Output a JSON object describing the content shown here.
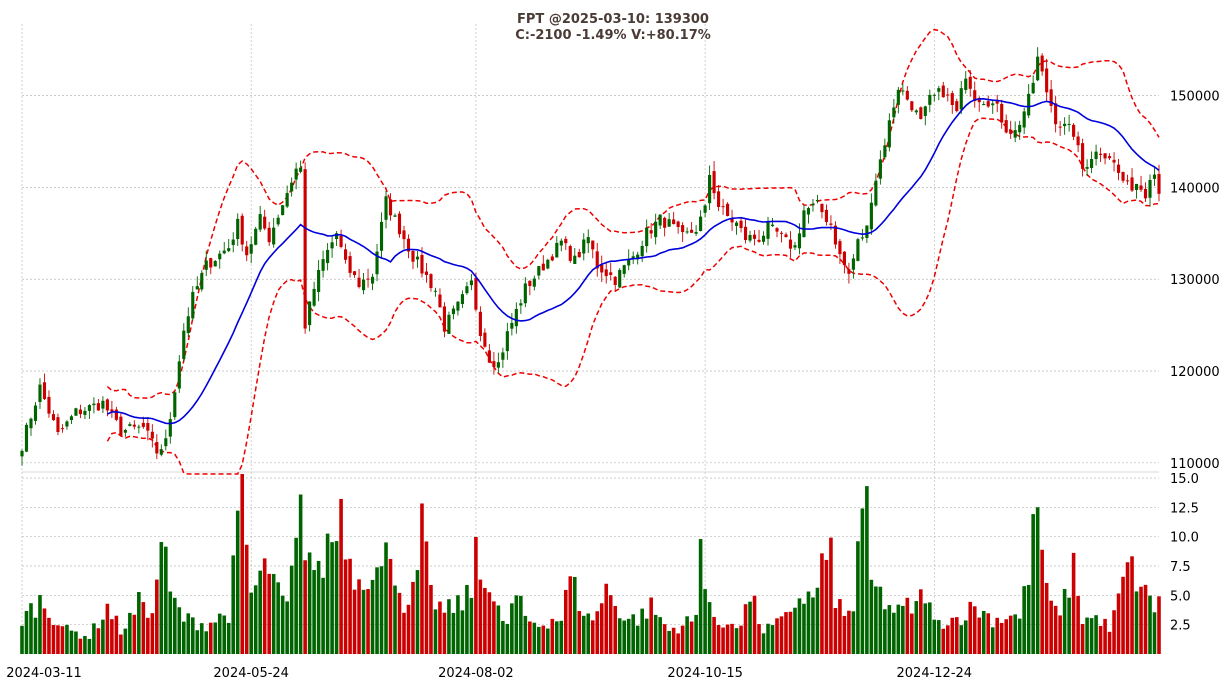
{
  "title_line1": "FPT @2025-03-10: 139300",
  "title_line2": "C:-2100 -1.49% V:+80.17%",
  "colors": {
    "up": "#006400",
    "down": "#cc0000",
    "ma": "#0000dd",
    "band": "#ee0000",
    "grid": "#bbbbbb"
  },
  "chart_data": [
    {
      "type": "candlestick",
      "title": "FPT @2025-03-10: 139300",
      "subtitle": "C:-2100 -1.49% V:+80.17%",
      "x_tick_labels": [
        "2024-03-11",
        "2024-05-24",
        "2024-08-02",
        "2024-10-15",
        "2024-12-24"
      ],
      "x_tick_positions": [
        0,
        51,
        101,
        152,
        203
      ],
      "y_tick_labels": [
        "110000",
        "120000",
        "130000",
        "140000",
        "150000"
      ],
      "ylim": [
        109000,
        157800
      ],
      "grid": true,
      "overlays": [
        "20-period moving average (blue)",
        "Bollinger bands (red dashed)"
      ],
      "anchor_closes": [
        [
          0,
          112000
        ],
        [
          4,
          118200
        ],
        [
          8,
          113000
        ],
        [
          12,
          115500
        ],
        [
          18,
          116500
        ],
        [
          22,
          113500
        ],
        [
          27,
          113800
        ],
        [
          30,
          111200
        ],
        [
          32,
          112200
        ],
        [
          33,
          115000
        ],
        [
          36,
          124500
        ],
        [
          38,
          128000
        ],
        [
          41,
          131500
        ],
        [
          46,
          133500
        ],
        [
          48,
          136000
        ],
        [
          50,
          132800
        ],
        [
          53,
          136500
        ],
        [
          55,
          134500
        ],
        [
          59,
          139500
        ],
        [
          61,
          142000
        ],
        [
          62,
          142000
        ],
        [
          63,
          125000
        ],
        [
          65,
          129000
        ],
        [
          67,
          132000
        ],
        [
          70,
          135000
        ],
        [
          72,
          131500
        ],
        [
          75,
          129500
        ],
        [
          78,
          130500
        ],
        [
          81,
          138500
        ],
        [
          84,
          135500
        ],
        [
          87,
          132500
        ],
        [
          92,
          128800
        ],
        [
          94,
          124800
        ],
        [
          97,
          127000
        ],
        [
          100,
          129500
        ],
        [
          102,
          124500
        ],
        [
          104,
          121500
        ],
        [
          106,
          120800
        ],
        [
          108,
          124000
        ],
        [
          112,
          129000
        ],
        [
          116,
          131500
        ],
        [
          120,
          134000
        ],
        [
          123,
          132000
        ],
        [
          126,
          134500
        ],
        [
          128,
          131500
        ],
        [
          132,
          130000
        ],
        [
          136,
          132500
        ],
        [
          139,
          135000
        ],
        [
          142,
          136500
        ],
        [
          144,
          136000
        ],
        [
          147,
          134500
        ],
        [
          150,
          135500
        ],
        [
          152,
          137500
        ],
        [
          153,
          141500
        ],
        [
          155,
          138000
        ],
        [
          157,
          136800
        ],
        [
          159,
          136000
        ],
        [
          161,
          134500
        ],
        [
          164,
          134500
        ],
        [
          166,
          135500
        ],
        [
          168,
          135000
        ],
        [
          170,
          134000
        ],
        [
          172,
          133500
        ],
        [
          174,
          137500
        ],
        [
          177,
          138000
        ],
        [
          180,
          136000
        ],
        [
          182,
          132500
        ],
        [
          184,
          130500
        ],
        [
          186,
          134000
        ],
        [
          188,
          135500
        ],
        [
          189,
          139000
        ],
        [
          191,
          143000
        ],
        [
          193,
          147000
        ],
        [
          195,
          151000
        ],
        [
          198,
          149000
        ],
        [
          200,
          147000
        ],
        [
          202,
          149500
        ],
        [
          205,
          150500
        ],
        [
          208,
          148000
        ],
        [
          210,
          152500
        ],
        [
          212,
          150000
        ],
        [
          215,
          149500
        ],
        [
          217,
          148500
        ],
        [
          219,
          146500
        ],
        [
          221,
          146000
        ],
        [
          224,
          149500
        ],
        [
          225,
          151500
        ],
        [
          226,
          154000
        ],
        [
          228,
          150500
        ],
        [
          230,
          147500
        ],
        [
          232,
          146500
        ],
        [
          234,
          146000
        ],
        [
          236,
          142000
        ],
        [
          238,
          143500
        ],
        [
          240,
          144000
        ],
        [
          242,
          143500
        ],
        [
          244,
          141500
        ],
        [
          246,
          140000
        ],
        [
          248,
          140500
        ],
        [
          250,
          139500
        ],
        [
          251,
          141500
        ],
        [
          252,
          141400
        ],
        [
          253,
          139300
        ]
      ],
      "volume": {
        "y_tick_labels": [
          "2.5",
          "5.0",
          "7.5",
          "10.0",
          "12.5",
          "15.0"
        ],
        "ylim": [
          0,
          15
        ],
        "anchor_values": [
          [
            0,
            3
          ],
          [
            4,
            4.5
          ],
          [
            10,
            2
          ],
          [
            15,
            1.5
          ],
          [
            19,
            4
          ],
          [
            22,
            2
          ],
          [
            25,
            3.5
          ],
          [
            27,
            5
          ],
          [
            29,
            3
          ],
          [
            31,
            10.2
          ],
          [
            33,
            5
          ],
          [
            36,
            3
          ],
          [
            41,
            2.5
          ],
          [
            46,
            3.5
          ],
          [
            49,
            13.5
          ],
          [
            51,
            5
          ],
          [
            53,
            6.5
          ],
          [
            55,
            7.5
          ],
          [
            57,
            5
          ],
          [
            59,
            4
          ],
          [
            62,
            11.5
          ],
          [
            64,
            8.5
          ],
          [
            66,
            6.5
          ],
          [
            69,
            10.5
          ],
          [
            70,
            9.5
          ],
          [
            71,
            13.5
          ],
          [
            73,
            7.5
          ],
          [
            75,
            6.5
          ],
          [
            78,
            7.5
          ],
          [
            80,
            6.8
          ],
          [
            82,
            9.5
          ],
          [
            84,
            5.5
          ],
          [
            86,
            3.5
          ],
          [
            88,
            7
          ],
          [
            89,
            10.5
          ],
          [
            91,
            5
          ],
          [
            94,
            3.5
          ],
          [
            96,
            4
          ],
          [
            98,
            4.5
          ],
          [
            100,
            5
          ],
          [
            101,
            10
          ],
          [
            103,
            6.5
          ],
          [
            105,
            4
          ],
          [
            108,
            2.5
          ],
          [
            110,
            5
          ],
          [
            112,
            3
          ],
          [
            115,
            2.5
          ],
          [
            118,
            3
          ],
          [
            120,
            3
          ],
          [
            122,
            6.5
          ],
          [
            124,
            4.5
          ],
          [
            126,
            3
          ],
          [
            128,
            3.5
          ],
          [
            130,
            5.5
          ],
          [
            132,
            4.5
          ],
          [
            134,
            3
          ],
          [
            137,
            3
          ],
          [
            140,
            4
          ],
          [
            144,
            2
          ],
          [
            147,
            2.5
          ],
          [
            150,
            3
          ],
          [
            151,
            9.8
          ],
          [
            153,
            4.5
          ],
          [
            155,
            2
          ],
          [
            158,
            3
          ],
          [
            160,
            2.5
          ],
          [
            162,
            5
          ],
          [
            165,
            2
          ],
          [
            168,
            2.5
          ],
          [
            170,
            3
          ],
          [
            172,
            4.5
          ],
          [
            174,
            5
          ],
          [
            176,
            4.5
          ],
          [
            178,
            7.5
          ],
          [
            180,
            8
          ],
          [
            181,
            5
          ],
          [
            183,
            3
          ],
          [
            185,
            4
          ],
          [
            186,
            10
          ],
          [
            188,
            11.5
          ],
          [
            189,
            6
          ],
          [
            191,
            5
          ],
          [
            193,
            4
          ],
          [
            195,
            3.5
          ],
          [
            197,
            4
          ],
          [
            199,
            4
          ],
          [
            201,
            5.5
          ],
          [
            203,
            2.5
          ],
          [
            206,
            3
          ],
          [
            208,
            3
          ],
          [
            210,
            3.5
          ],
          [
            212,
            4
          ],
          [
            214,
            3.5
          ],
          [
            216,
            3
          ],
          [
            218,
            3
          ],
          [
            220,
            3.5
          ],
          [
            222,
            3
          ],
          [
            224,
            7
          ],
          [
            226,
            12.8
          ],
          [
            228,
            5
          ],
          [
            230,
            3.5
          ],
          [
            232,
            4.5
          ],
          [
            234,
            7.5
          ],
          [
            236,
            3
          ],
          [
            238,
            3
          ],
          [
            240,
            3
          ],
          [
            242,
            2
          ],
          [
            244,
            4.5
          ],
          [
            246,
            7.5
          ],
          [
            248,
            6.5
          ],
          [
            250,
            5
          ],
          [
            252,
            4
          ],
          [
            253,
            5.3
          ]
        ]
      }
    }
  ]
}
